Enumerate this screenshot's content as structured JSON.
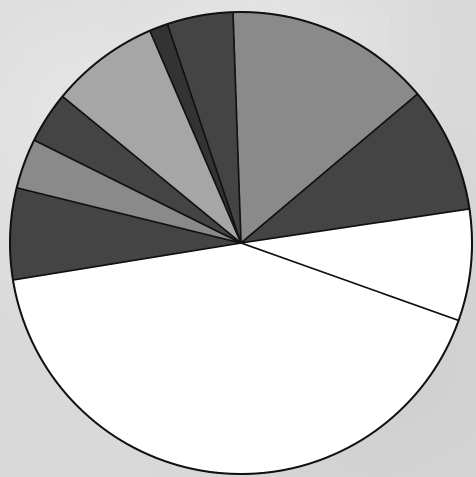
{
  "chart_data": {
    "type": "pie",
    "title": "",
    "start_angle_deg": -2,
    "direction": "clockwise",
    "slices": [
      {
        "value": 14.4,
        "color": "#8a8a8a"
      },
      {
        "value": 8.8,
        "color": "#444444"
      },
      {
        "value": 7.8,
        "color": "#ffffff"
      },
      {
        "value": 42.0,
        "color": "#ffffff"
      },
      {
        "value": 6.4,
        "color": "#444444"
      },
      {
        "value": 3.5,
        "color": "#8a8a8a"
      },
      {
        "value": 3.6,
        "color": "#444444"
      },
      {
        "value": 7.6,
        "color": "#a6a6a6"
      },
      {
        "value": 1.3,
        "color": "#333333"
      },
      {
        "value": 4.6,
        "color": "#444444"
      }
    ]
  }
}
